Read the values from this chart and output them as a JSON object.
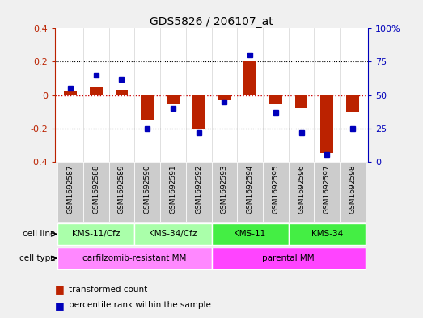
{
  "title": "GDS5826 / 206107_at",
  "samples": [
    "GSM1692587",
    "GSM1692588",
    "GSM1692589",
    "GSM1692590",
    "GSM1692591",
    "GSM1692592",
    "GSM1692593",
    "GSM1692594",
    "GSM1692595",
    "GSM1692596",
    "GSM1692597",
    "GSM1692598"
  ],
  "transformed_count": [
    0.02,
    0.05,
    0.03,
    -0.15,
    -0.05,
    -0.2,
    -0.03,
    0.2,
    -0.05,
    -0.08,
    -0.35,
    -0.1
  ],
  "percentile_rank": [
    55,
    65,
    62,
    25,
    40,
    22,
    45,
    80,
    37,
    22,
    5,
    25
  ],
  "cell_line_groups": [
    {
      "label": "KMS-11/Cfz",
      "start": 0,
      "end": 3,
      "color": "#aaffaa"
    },
    {
      "label": "KMS-34/Cfz",
      "start": 3,
      "end": 6,
      "color": "#aaffaa"
    },
    {
      "label": "KMS-11",
      "start": 6,
      "end": 9,
      "color": "#44ee44"
    },
    {
      "label": "KMS-34",
      "start": 9,
      "end": 12,
      "color": "#44ee44"
    }
  ],
  "cell_type_groups": [
    {
      "label": "carfilzomib-resistant MM",
      "start": 0,
      "end": 6,
      "color": "#ff88ff"
    },
    {
      "label": "parental MM",
      "start": 6,
      "end": 12,
      "color": "#ff44ff"
    }
  ],
  "ylim_left": [
    -0.4,
    0.4
  ],
  "ylim_right": [
    0,
    100
  ],
  "yticks_left": [
    -0.4,
    -0.2,
    0.0,
    0.2,
    0.4
  ],
  "yticks_right": [
    0,
    25,
    50,
    75,
    100
  ],
  "bar_color": "#bb2200",
  "dot_color": "#0000bb",
  "bg_color": "#f0f0f0",
  "plot_bg": "#ffffff",
  "zero_line_color": "#cc0000",
  "grid_color": "#000000",
  "sample_bg": "#cccccc"
}
